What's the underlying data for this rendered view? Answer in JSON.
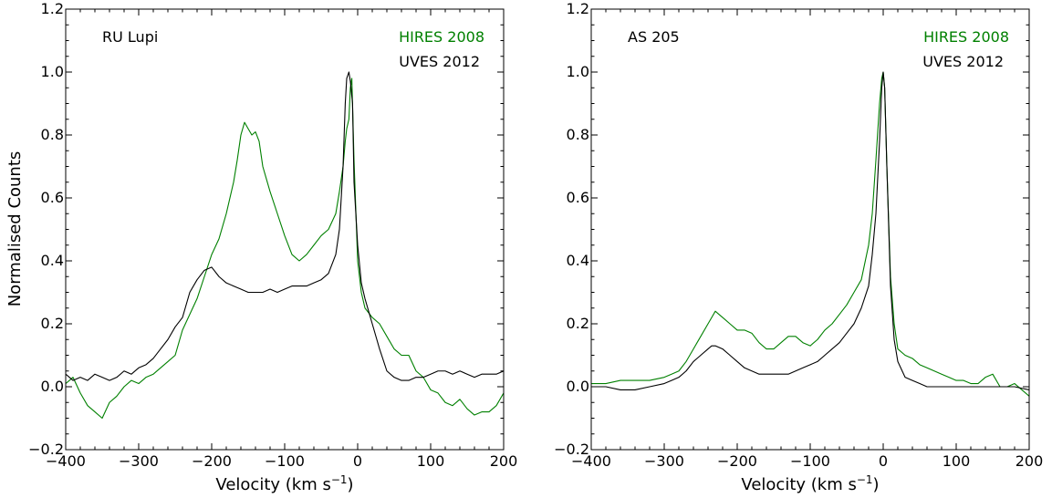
{
  "figure": {
    "ylabel": "Normalised Counts"
  },
  "chart_data": [
    {
      "type": "line",
      "star": "RU Lupi",
      "xlabel": "Velocity (km s$^{-1}$)",
      "xlabel_main": "Velocity (km s",
      "xlabel_exp": "−1",
      "xlabel_close": ")",
      "ylabel": "Normalised Counts",
      "xlim": [
        -400,
        200
      ],
      "ylim": [
        -0.2,
        1.2
      ],
      "xticks": [
        -400,
        -300,
        -200,
        -100,
        0,
        100,
        200
      ],
      "xtick_labels": [
        "−400",
        "−300",
        "−200",
        "−100",
        "0",
        "100",
        "200"
      ],
      "yticks": [
        -0.2,
        0.0,
        0.2,
        0.4,
        0.6,
        0.8,
        1.0,
        1.2
      ],
      "ytick_labels": [
        "−0.2",
        "0.0",
        "0.2",
        "0.4",
        "0.6",
        "0.8",
        "1.0",
        "1.2"
      ],
      "legend_position": "top-right",
      "series": [
        {
          "name": "HIRES 2008",
          "color": "#008000",
          "x": [
            -400,
            -390,
            -380,
            -370,
            -360,
            -350,
            -340,
            -330,
            -320,
            -310,
            -300,
            -290,
            -280,
            -270,
            -260,
            -250,
            -240,
            -230,
            -220,
            -210,
            -200,
            -190,
            -180,
            -170,
            -165,
            -160,
            -155,
            -150,
            -145,
            -140,
            -135,
            -130,
            -125,
            -120,
            -110,
            -100,
            -90,
            -80,
            -70,
            -60,
            -50,
            -40,
            -30,
            -25,
            -20,
            -17,
            -15,
            -12,
            -10,
            -8,
            -5,
            0,
            5,
            10,
            20,
            30,
            40,
            50,
            60,
            70,
            80,
            90,
            100,
            110,
            120,
            130,
            140,
            150,
            160,
            170,
            180,
            190,
            200
          ],
          "y": [
            0.01,
            0.03,
            -0.02,
            -0.06,
            -0.08,
            -0.1,
            -0.05,
            -0.03,
            0.0,
            0.02,
            0.01,
            0.03,
            0.04,
            0.06,
            0.08,
            0.1,
            0.18,
            0.23,
            0.28,
            0.35,
            0.42,
            0.47,
            0.55,
            0.65,
            0.72,
            0.8,
            0.84,
            0.82,
            0.8,
            0.81,
            0.78,
            0.7,
            0.66,
            0.62,
            0.55,
            0.48,
            0.42,
            0.4,
            0.42,
            0.45,
            0.48,
            0.5,
            0.55,
            0.62,
            0.7,
            0.78,
            0.82,
            0.85,
            0.95,
            0.98,
            0.72,
            0.4,
            0.3,
            0.25,
            0.22,
            0.2,
            0.16,
            0.12,
            0.1,
            0.1,
            0.05,
            0.03,
            -0.01,
            -0.02,
            -0.05,
            -0.06,
            -0.04,
            -0.07,
            -0.09,
            -0.08,
            -0.08,
            -0.06,
            -0.02
          ]
        },
        {
          "name": "UVES 2012",
          "color": "#000000",
          "x": [
            -400,
            -390,
            -380,
            -370,
            -360,
            -350,
            -340,
            -330,
            -320,
            -310,
            -300,
            -290,
            -280,
            -270,
            -260,
            -250,
            -240,
            -230,
            -220,
            -210,
            -200,
            -190,
            -180,
            -170,
            -160,
            -150,
            -140,
            -130,
            -120,
            -110,
            -100,
            -90,
            -80,
            -70,
            -60,
            -50,
            -40,
            -30,
            -25,
            -20,
            -17,
            -15,
            -12,
            -10,
            -7,
            -5,
            0,
            5,
            10,
            15,
            20,
            30,
            40,
            50,
            60,
            70,
            80,
            90,
            100,
            110,
            120,
            130,
            140,
            150,
            160,
            170,
            180,
            190,
            200
          ],
          "y": [
            0.04,
            0.02,
            0.03,
            0.02,
            0.04,
            0.03,
            0.02,
            0.03,
            0.05,
            0.04,
            0.06,
            0.07,
            0.09,
            0.12,
            0.15,
            0.19,
            0.22,
            0.3,
            0.34,
            0.37,
            0.38,
            0.35,
            0.33,
            0.32,
            0.31,
            0.3,
            0.3,
            0.3,
            0.31,
            0.3,
            0.31,
            0.32,
            0.32,
            0.32,
            0.33,
            0.34,
            0.36,
            0.42,
            0.5,
            0.7,
            0.9,
            0.98,
            1.0,
            0.97,
            0.9,
            0.65,
            0.45,
            0.33,
            0.28,
            0.24,
            0.2,
            0.12,
            0.05,
            0.03,
            0.02,
            0.02,
            0.03,
            0.03,
            0.04,
            0.05,
            0.05,
            0.04,
            0.05,
            0.04,
            0.03,
            0.04,
            0.04,
            0.04,
            0.05
          ]
        }
      ]
    },
    {
      "type": "line",
      "star": "AS 205",
      "xlabel": "Velocity (km s$^{-1}$)",
      "xlabel_main": "Velocity (km s",
      "xlabel_exp": "−1",
      "xlabel_close": ")",
      "ylabel": "",
      "xlim": [
        -400,
        200
      ],
      "ylim": [
        -0.2,
        1.2
      ],
      "xticks": [
        -400,
        -300,
        -200,
        -100,
        0,
        100,
        200
      ],
      "xtick_labels": [
        "−400",
        "−300",
        "−200",
        "−100",
        "0",
        "100",
        "200"
      ],
      "yticks": [
        -0.2,
        0.0,
        0.2,
        0.4,
        0.6,
        0.8,
        1.0,
        1.2
      ],
      "ytick_labels": [
        "−0.2",
        "0.0",
        "0.2",
        "0.4",
        "0.6",
        "0.8",
        "1.0",
        "1.2"
      ],
      "legend_position": "top-right",
      "series": [
        {
          "name": "HIRES 2008",
          "color": "#008000",
          "x": [
            -400,
            -380,
            -360,
            -340,
            -320,
            -300,
            -290,
            -280,
            -270,
            -260,
            -250,
            -240,
            -235,
            -230,
            -225,
            -220,
            -210,
            -200,
            -190,
            -180,
            -170,
            -160,
            -150,
            -140,
            -130,
            -120,
            -110,
            -100,
            -90,
            -80,
            -70,
            -60,
            -50,
            -40,
            -30,
            -20,
            -15,
            -10,
            -5,
            -2,
            0,
            2,
            5,
            10,
            15,
            20,
            30,
            40,
            50,
            60,
            70,
            80,
            90,
            100,
            110,
            120,
            130,
            140,
            150,
            160,
            170,
            180,
            190,
            200
          ],
          "y": [
            0.01,
            0.01,
            0.02,
            0.02,
            0.02,
            0.03,
            0.04,
            0.05,
            0.08,
            0.12,
            0.16,
            0.2,
            0.22,
            0.24,
            0.23,
            0.22,
            0.2,
            0.18,
            0.18,
            0.17,
            0.14,
            0.12,
            0.12,
            0.14,
            0.16,
            0.16,
            0.14,
            0.13,
            0.15,
            0.18,
            0.2,
            0.23,
            0.26,
            0.3,
            0.34,
            0.45,
            0.55,
            0.72,
            0.9,
            0.98,
            1.0,
            0.95,
            0.7,
            0.35,
            0.2,
            0.12,
            0.1,
            0.09,
            0.07,
            0.06,
            0.05,
            0.04,
            0.03,
            0.02,
            0.02,
            0.01,
            0.01,
            0.03,
            0.04,
            0.0,
            0.0,
            0.01,
            -0.01,
            -0.03
          ]
        },
        {
          "name": "UVES 2012",
          "color": "#000000",
          "x": [
            -400,
            -380,
            -360,
            -340,
            -320,
            -300,
            -290,
            -280,
            -270,
            -260,
            -250,
            -240,
            -235,
            -230,
            -220,
            -210,
            -200,
            -190,
            -180,
            -170,
            -160,
            -150,
            -140,
            -130,
            -120,
            -110,
            -100,
            -90,
            -80,
            -70,
            -60,
            -50,
            -40,
            -30,
            -20,
            -15,
            -10,
            -5,
            -2,
            0,
            2,
            5,
            10,
            15,
            20,
            30,
            40,
            50,
            60,
            80,
            100,
            120,
            140,
            160,
            180,
            200
          ],
          "y": [
            0.0,
            0.0,
            -0.01,
            -0.01,
            0.0,
            0.01,
            0.02,
            0.03,
            0.05,
            0.08,
            0.1,
            0.12,
            0.13,
            0.13,
            0.12,
            0.1,
            0.08,
            0.06,
            0.05,
            0.04,
            0.04,
            0.04,
            0.04,
            0.04,
            0.05,
            0.06,
            0.07,
            0.08,
            0.1,
            0.12,
            0.14,
            0.17,
            0.2,
            0.25,
            0.32,
            0.42,
            0.55,
            0.78,
            0.95,
            1.0,
            0.95,
            0.7,
            0.32,
            0.15,
            0.08,
            0.03,
            0.02,
            0.01,
            0.0,
            0.0,
            0.0,
            0.0,
            0.0,
            0.0,
            0.0,
            -0.01
          ]
        }
      ]
    }
  ]
}
